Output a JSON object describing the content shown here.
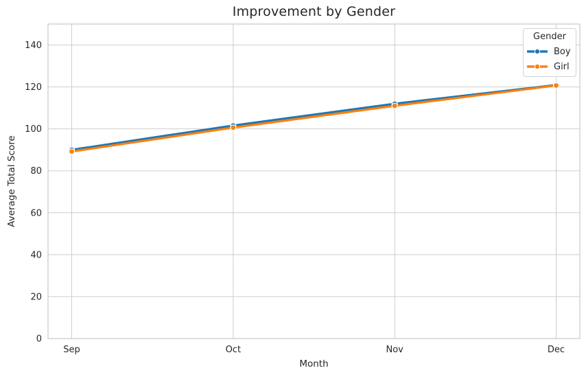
{
  "chart_data": {
    "type": "line",
    "title": "Improvement by Gender",
    "xlabel": "Month",
    "ylabel": "Average Total Score",
    "categories": [
      "Sep",
      "Oct",
      "Nov",
      "Dec"
    ],
    "series": [
      {
        "name": "Boy",
        "color": "#1f77b4",
        "values": [
          90.0,
          101.6,
          112.0,
          120.9
        ]
      },
      {
        "name": "Girl",
        "color": "#ff7f0e",
        "values": [
          89.2,
          100.6,
          111.0,
          120.7
        ]
      }
    ],
    "ylim": [
      0,
      150
    ],
    "yticks": [
      0,
      20,
      40,
      60,
      80,
      100,
      120,
      140
    ],
    "grid": true,
    "grid_color": "#cdcdcd",
    "spine_color": "#c9c9c9",
    "tick_label_color": "#262626",
    "marker": "o",
    "marker_edge_color": "#ffffff",
    "legend": {
      "title": "Gender",
      "position": "upper right"
    }
  }
}
